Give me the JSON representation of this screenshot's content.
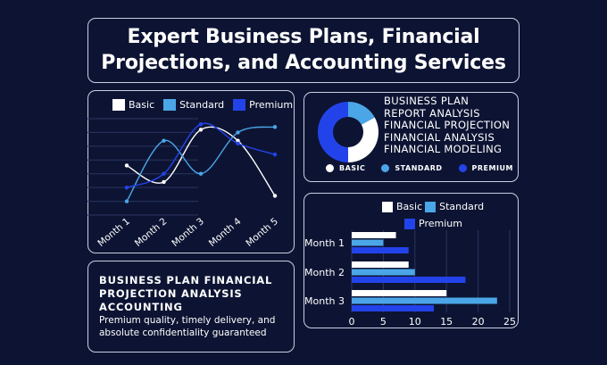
{
  "title": {
    "line1": "Expert Business Plans, Financial",
    "line2": "Projections, and Accounting Services"
  },
  "colors": {
    "basic": "#ffffff",
    "standard": "#4ba6e8",
    "premium": "#2343ea",
    "background": "#0d1433",
    "border": "#c9cfe0"
  },
  "line_chart": {
    "legend": [
      "Basic",
      "Standard",
      "Premium"
    ],
    "chart_data": {
      "type": "line",
      "categories": [
        "Month 1",
        "Month 2",
        "Month 3",
        "Month 4",
        "Month 5"
      ],
      "series": [
        {
          "name": "Basic",
          "values": [
            18,
            12,
            31,
            27,
            7
          ]
        },
        {
          "name": "Standard",
          "values": [
            5,
            27,
            15,
            30,
            32
          ]
        },
        {
          "name": "Premium",
          "values": [
            10,
            15,
            33,
            26,
            22
          ]
        }
      ],
      "yticks": [
        "0",
        "5",
        "10",
        "15",
        "20",
        "25",
        "30",
        "35"
      ],
      "ylim": [
        0,
        35
      ]
    }
  },
  "donut": {
    "services": [
      "BUSINESS PLAN",
      "REPORT ANALYSIS",
      "FINANCIAL PROJECTION",
      "FINANCIAL ANALYSIS",
      "FINANCIAL MODELING"
    ],
    "legend": [
      "BASIC",
      "STANDARD",
      "PREMIUM"
    ],
    "chart_data": {
      "type": "pie",
      "labels": [
        "BASIC",
        "STANDARD",
        "PREMIUM"
      ],
      "values": [
        33,
        17,
        50
      ]
    }
  },
  "bar_chart": {
    "legend": [
      "Basic",
      "Standard",
      "Premium"
    ],
    "chart_data": {
      "type": "bar",
      "orientation": "horizontal",
      "categories": [
        "Month 1",
        "Month 2",
        "Month 3"
      ],
      "series": [
        {
          "name": "Basic",
          "values": [
            7,
            9,
            15
          ]
        },
        {
          "name": "Standard",
          "values": [
            5,
            10,
            23
          ]
        },
        {
          "name": "Premium",
          "values": [
            9,
            18,
            13
          ]
        }
      ],
      "xticks": [
        "0",
        "5",
        "10",
        "15",
        "20",
        "25"
      ],
      "xlim": [
        0,
        25
      ]
    }
  },
  "description": {
    "heading_line1": "BUSINESS PLAN FINANCIAL",
    "heading_line2": "PROJECTION ANALYSIS",
    "heading_line3": "ACCOUNTING",
    "body_line1": "Premium quality, timely delivery, and",
    "body_line2": "absolute confidentiality guaranteed"
  }
}
